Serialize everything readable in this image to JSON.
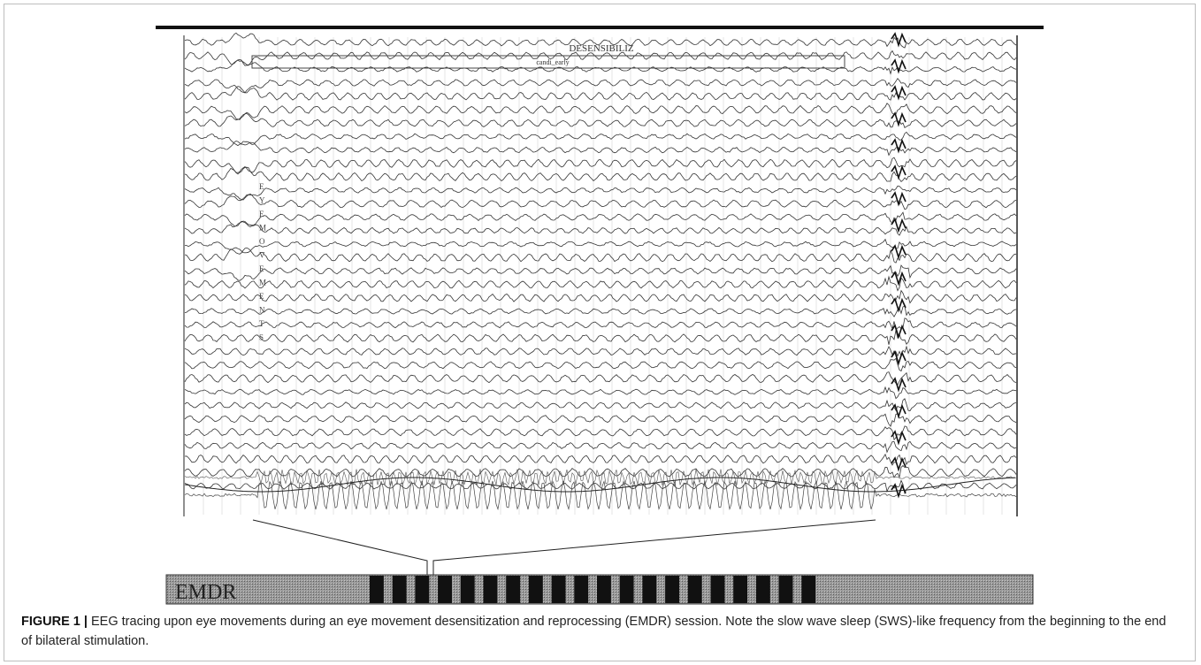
{
  "figure": {
    "label": "FIGURE 1 |",
    "caption": "EEG tracing upon eye movements during an eye movement desensitization and reprocessing (EMDR) session. Note the slow wave sleep (SWS)-like frequency from the beginning to the end of bilateral stimulation."
  },
  "eeg_panel": {
    "annotation_title": "DESENSIBILIZ",
    "annotation_subtitle": "candi_early",
    "vertical_label_letters": [
      "E",
      "Y",
      "E",
      "M",
      "O",
      "V",
      "E",
      "M",
      "E",
      "N",
      "T",
      "S"
    ]
  },
  "stimulation_bar": {
    "label": "EMDR",
    "stimulus_block_count": 20
  }
}
